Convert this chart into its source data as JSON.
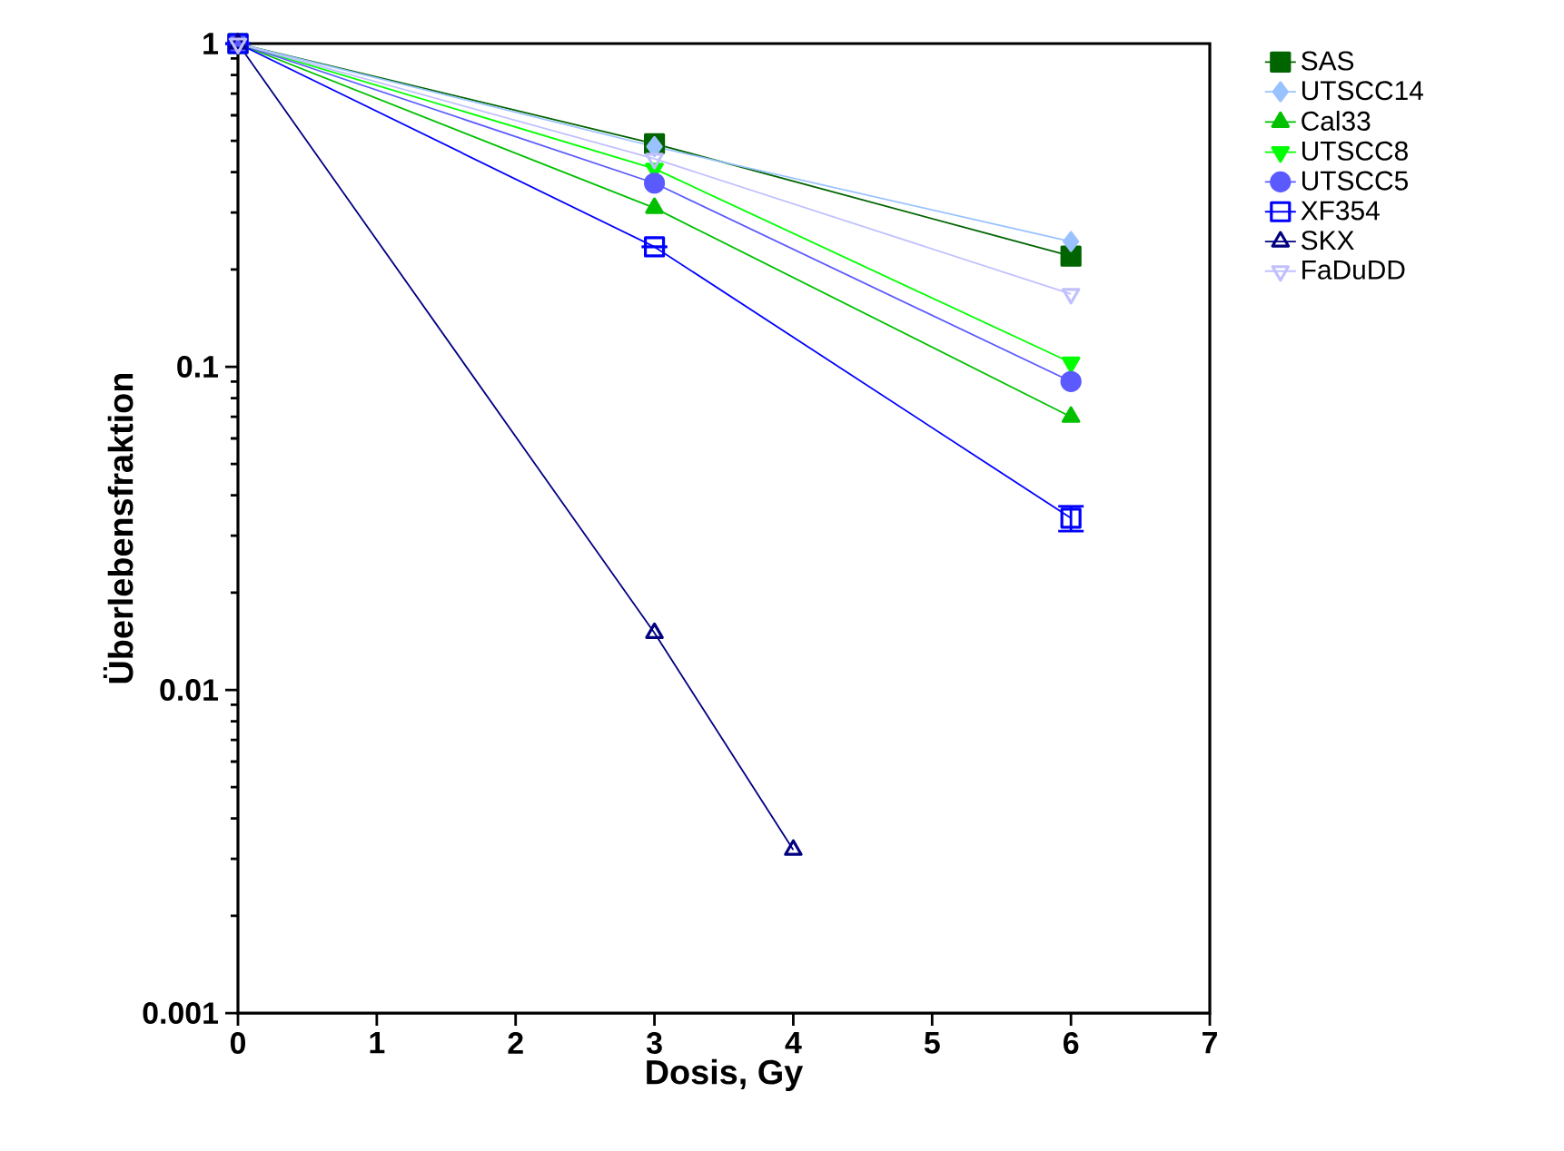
{
  "chart_data": {
    "type": "line",
    "xlabel": "Dosis, Gy",
    "ylabel": "Überlebensfraktion",
    "log": "y",
    "xlim": [
      0,
      7
    ],
    "xticks": [
      0,
      1,
      2,
      3,
      4,
      5,
      6,
      7
    ],
    "ylim": [
      0.001,
      1
    ],
    "yticks": [
      0.001,
      0.01,
      0.1,
      1
    ],
    "legend": "right",
    "grid": false,
    "series": [
      {
        "name": "SAS",
        "color": "#006400",
        "marker": "square",
        "x": [
          0,
          3,
          6
        ],
        "values": [
          1,
          0.49,
          0.22
        ]
      },
      {
        "name": "UTSCC14",
        "color": "#99c2ff",
        "marker": "diamond",
        "x": [
          0,
          3,
          6
        ],
        "values": [
          1,
          0.48,
          0.244
        ]
      },
      {
        "name": "Cal33",
        "color": "#00c000",
        "marker": "triangle",
        "x": [
          0,
          3,
          6
        ],
        "values": [
          1,
          0.31,
          0.07
        ]
      },
      {
        "name": "UTSCC8",
        "color": "#00ff00",
        "marker": "triangle-down",
        "x": [
          0,
          3,
          6
        ],
        "values": [
          1,
          0.41,
          0.103
        ]
      },
      {
        "name": "UTSCC5",
        "color": "#5a5aff",
        "marker": "circle",
        "x": [
          0,
          3,
          6
        ],
        "values": [
          1,
          0.37,
          0.09
        ]
      },
      {
        "name": "XF354",
        "color": "#0000ff",
        "marker": "square-open",
        "x": [
          0,
          3,
          6
        ],
        "values": [
          1,
          0.235,
          0.034
        ],
        "errors": [
          null,
          null,
          [
            0.031,
            0.037
          ]
        ]
      },
      {
        "name": "SKX",
        "color": "#000080",
        "marker": "triangle-open",
        "x": [
          0,
          3,
          4
        ],
        "values": [
          1,
          0.015,
          0.0032
        ]
      },
      {
        "name": "FaDuDD",
        "color": "#c0c0ff",
        "marker": "triangle-down-open",
        "x": [
          0,
          3,
          6
        ],
        "values": [
          1,
          0.44,
          0.168
        ]
      }
    ]
  }
}
